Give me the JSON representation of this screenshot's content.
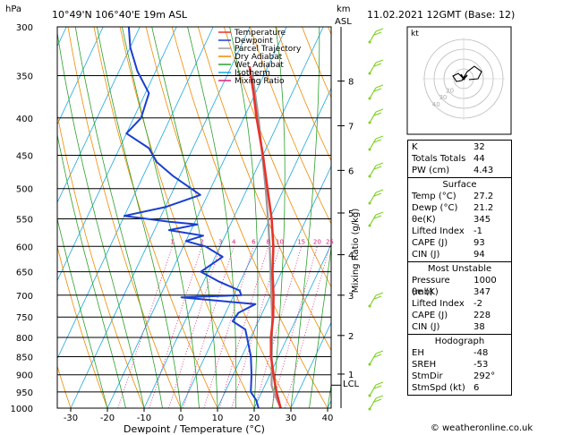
{
  "header": {
    "hpa_label": "hPa",
    "location": "10°49'N  106°40'E  19m  ASL",
    "km_label": "km",
    "asl_label": "ASL",
    "datetime": "11.02.2021  12GMT  (Base: 12)"
  },
  "skewt": {
    "pressure_levels": [
      300,
      350,
      400,
      450,
      500,
      550,
      600,
      650,
      700,
      750,
      800,
      850,
      900,
      950,
      1000
    ],
    "temp_ticks": [
      -30,
      -20,
      -10,
      0,
      10,
      20,
      30,
      40
    ],
    "xlabel": "Dewpoint / Temperature (°C)",
    "mixing_label": "Mixing Ratio (g/kg)",
    "mixing_ratio_labels": [
      "1",
      "2",
      "3",
      "4",
      "6",
      "8",
      "10",
      "15",
      "20",
      "25"
    ],
    "km_ticks": [
      {
        "label": "8",
        "p": 356
      },
      {
        "label": "7",
        "p": 410
      },
      {
        "label": "6",
        "p": 472
      },
      {
        "label": "5",
        "p": 540
      },
      {
        "label": "4",
        "p": 616
      },
      {
        "label": "3",
        "p": 700
      },
      {
        "label": "2",
        "p": 795
      },
      {
        "label": "1",
        "p": 898
      }
    ],
    "lcl_label": "LCL",
    "lcl_pressure": 930,
    "legend": [
      {
        "label": "Temperature",
        "color": "#e8322a"
      },
      {
        "label": "Dewpoint",
        "color": "#1a3fd0"
      },
      {
        "label": "Parcel Trajectory",
        "color": "#9a9a9a"
      },
      {
        "label": "Dry Adiabat",
        "color": "#f08a00"
      },
      {
        "label": "Wet Adiabat",
        "color": "#2ca02c"
      },
      {
        "label": "Isotherm",
        "color": "#1aa8e0"
      },
      {
        "label": "Mixing Ratio",
        "color": "#e0207a"
      }
    ]
  },
  "chart_data": {
    "type": "line",
    "xlabel": "Dewpoint / Temperature (°C)",
    "ylabel": "hPa",
    "xlim": [
      -35,
      40
    ],
    "ylim": [
      1000,
      300
    ],
    "series": [
      {
        "name": "Temperature",
        "points": [
          [
            1000,
            27.2
          ],
          [
            950,
            24
          ],
          [
            925,
            22.5
          ],
          [
            900,
            21
          ],
          [
            850,
            18
          ],
          [
            800,
            15.5
          ],
          [
            750,
            13.5
          ],
          [
            700,
            10.8
          ],
          [
            650,
            7.5
          ],
          [
            600,
            4.5
          ],
          [
            550,
            0.5
          ],
          [
            500,
            -4.5
          ],
          [
            450,
            -10
          ],
          [
            400,
            -16.5
          ],
          [
            370,
            -20.5
          ],
          [
            350,
            -23.5
          ],
          [
            340,
            -25
          ]
        ]
      },
      {
        "name": "Dewpoint",
        "points": [
          [
            1000,
            21.2
          ],
          [
            975,
            19.5
          ],
          [
            950,
            17
          ],
          [
            900,
            15
          ],
          [
            850,
            12.5
          ],
          [
            800,
            9
          ],
          [
            780,
            7.5
          ],
          [
            760,
            3
          ],
          [
            740,
            3.5
          ],
          [
            720,
            7
          ],
          [
            705,
            -14
          ],
          [
            700,
            2
          ],
          [
            690,
            1
          ],
          [
            670,
            -6
          ],
          [
            650,
            -12
          ],
          [
            620,
            -8
          ],
          [
            600,
            -14
          ],
          [
            590,
            -20
          ],
          [
            580,
            -16
          ],
          [
            570,
            -26
          ],
          [
            560,
            -19
          ],
          [
            555,
            -27
          ],
          [
            545,
            -40
          ],
          [
            530,
            -30
          ],
          [
            510,
            -22
          ],
          [
            480,
            -32
          ],
          [
            460,
            -38
          ],
          [
            440,
            -42
          ],
          [
            420,
            -50
          ],
          [
            400,
            -48
          ],
          [
            370,
            -49
          ],
          [
            345,
            -55
          ],
          [
            320,
            -60
          ],
          [
            300,
            -63
          ]
        ]
      },
      {
        "name": "Parcel Trajectory",
        "points": [
          [
            1000,
            27.2
          ],
          [
            950,
            23.2
          ],
          [
            930,
            21.8
          ],
          [
            900,
            20.5
          ],
          [
            850,
            18.2
          ],
          [
            800,
            15.8
          ],
          [
            750,
            13.2
          ],
          [
            700,
            10.2
          ],
          [
            650,
            7
          ],
          [
            600,
            3.5
          ],
          [
            550,
            -0.5
          ],
          [
            500,
            -5
          ],
          [
            450,
            -10.2
          ],
          [
            400,
            -16
          ],
          [
            350,
            -23
          ]
        ]
      }
    ]
  },
  "hodograph": {
    "unit_label": "kt",
    "ring_labels": [
      "20",
      "30",
      "40"
    ]
  },
  "table": {
    "indices": [
      {
        "k": "K",
        "v": "32"
      },
      {
        "k": "Totals Totals",
        "v": "44"
      },
      {
        "k": "PW (cm)",
        "v": "4.43"
      }
    ],
    "surface": {
      "title": "Surface",
      "rows": [
        {
          "k": "Temp (°C)",
          "v": "27.2"
        },
        {
          "k": "Dewp (°C)",
          "v": "21.2"
        },
        {
          "k": "θe(K)",
          "v": "345"
        },
        {
          "k": "Lifted Index",
          "v": "-1"
        },
        {
          "k": "CAPE (J)",
          "v": "93"
        },
        {
          "k": "CIN (J)",
          "v": "94"
        }
      ]
    },
    "most_unstable": {
      "title": "Most Unstable",
      "rows": [
        {
          "k": "Pressure (mb)",
          "v": "1000"
        },
        {
          "k": "θe (K)",
          "v": "347"
        },
        {
          "k": "Lifted Index",
          "v": "-2"
        },
        {
          "k": "CAPE (J)",
          "v": "228"
        },
        {
          "k": "CIN (J)",
          "v": "38"
        }
      ]
    },
    "hodograph": {
      "title": "Hodograph",
      "rows": [
        {
          "k": "EH",
          "v": "-48"
        },
        {
          "k": "SREH",
          "v": "-53"
        },
        {
          "k": "StmDir",
          "v": "292°"
        },
        {
          "k": "StmSpd (kt)",
          "v": "6"
        }
      ]
    }
  },
  "footer": {
    "copyright": "© weatheronline.co.uk"
  },
  "colors": {
    "temperature": "#e8322a",
    "dewpoint": "#1a3fd0",
    "parcel": "#9a9a9a",
    "dry_adiabat": "#f08a00",
    "wet_adiabat": "#2ca02c",
    "isotherm": "#1aa8e0",
    "mixing_ratio": "#e0207a",
    "wind_barb": "#7ed321"
  }
}
